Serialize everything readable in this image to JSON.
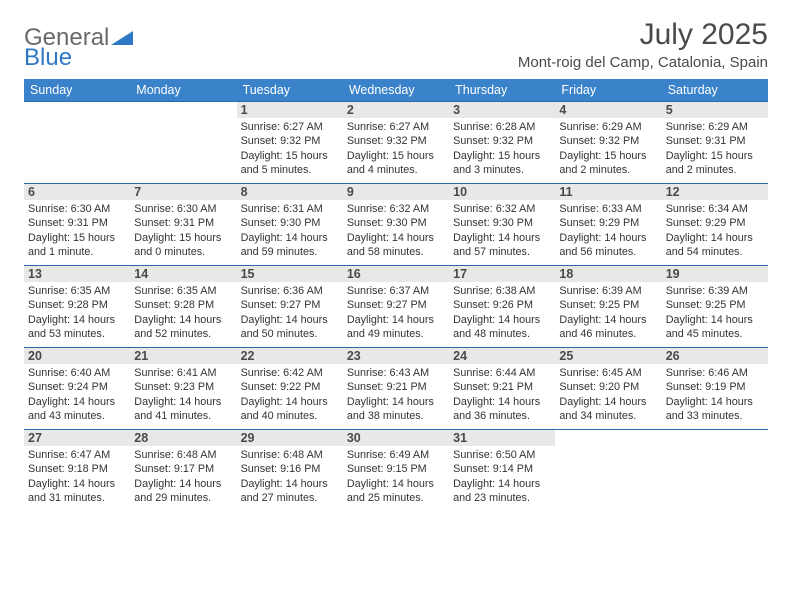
{
  "brand": {
    "part1": "General",
    "part2": "Blue",
    "color1": "#6a6a6a",
    "color2": "#2f78c4"
  },
  "title": {
    "month": "July 2025",
    "location": "Mont-roig del Camp, Catalonia, Spain"
  },
  "style": {
    "header_bg": "#3a82c9",
    "header_text": "#ffffff",
    "row_border": "#2a6aa8",
    "daynum_bg": "#e8e8e8",
    "page_bg": "#ffffff",
    "body_text": "#333333",
    "month_fontsize": 30,
    "location_fontsize": 15,
    "dayhdr_fontsize": 12.5,
    "cell_fontsize": 10.8
  },
  "day_headers": [
    "Sunday",
    "Monday",
    "Tuesday",
    "Wednesday",
    "Thursday",
    "Friday",
    "Saturday"
  ],
  "weeks": [
    [
      null,
      null,
      {
        "n": "1",
        "rise": "6:27 AM",
        "set": "9:32 PM",
        "day": "15 hours and 5 minutes."
      },
      {
        "n": "2",
        "rise": "6:27 AM",
        "set": "9:32 PM",
        "day": "15 hours and 4 minutes."
      },
      {
        "n": "3",
        "rise": "6:28 AM",
        "set": "9:32 PM",
        "day": "15 hours and 3 minutes."
      },
      {
        "n": "4",
        "rise": "6:29 AM",
        "set": "9:32 PM",
        "day": "15 hours and 2 minutes."
      },
      {
        "n": "5",
        "rise": "6:29 AM",
        "set": "9:31 PM",
        "day": "15 hours and 2 minutes."
      }
    ],
    [
      {
        "n": "6",
        "rise": "6:30 AM",
        "set": "9:31 PM",
        "day": "15 hours and 1 minute."
      },
      {
        "n": "7",
        "rise": "6:30 AM",
        "set": "9:31 PM",
        "day": "15 hours and 0 minutes."
      },
      {
        "n": "8",
        "rise": "6:31 AM",
        "set": "9:30 PM",
        "day": "14 hours and 59 minutes."
      },
      {
        "n": "9",
        "rise": "6:32 AM",
        "set": "9:30 PM",
        "day": "14 hours and 58 minutes."
      },
      {
        "n": "10",
        "rise": "6:32 AM",
        "set": "9:30 PM",
        "day": "14 hours and 57 minutes."
      },
      {
        "n": "11",
        "rise": "6:33 AM",
        "set": "9:29 PM",
        "day": "14 hours and 56 minutes."
      },
      {
        "n": "12",
        "rise": "6:34 AM",
        "set": "9:29 PM",
        "day": "14 hours and 54 minutes."
      }
    ],
    [
      {
        "n": "13",
        "rise": "6:35 AM",
        "set": "9:28 PM",
        "day": "14 hours and 53 minutes."
      },
      {
        "n": "14",
        "rise": "6:35 AM",
        "set": "9:28 PM",
        "day": "14 hours and 52 minutes."
      },
      {
        "n": "15",
        "rise": "6:36 AM",
        "set": "9:27 PM",
        "day": "14 hours and 50 minutes."
      },
      {
        "n": "16",
        "rise": "6:37 AM",
        "set": "9:27 PM",
        "day": "14 hours and 49 minutes."
      },
      {
        "n": "17",
        "rise": "6:38 AM",
        "set": "9:26 PM",
        "day": "14 hours and 48 minutes."
      },
      {
        "n": "18",
        "rise": "6:39 AM",
        "set": "9:25 PM",
        "day": "14 hours and 46 minutes."
      },
      {
        "n": "19",
        "rise": "6:39 AM",
        "set": "9:25 PM",
        "day": "14 hours and 45 minutes."
      }
    ],
    [
      {
        "n": "20",
        "rise": "6:40 AM",
        "set": "9:24 PM",
        "day": "14 hours and 43 minutes."
      },
      {
        "n": "21",
        "rise": "6:41 AM",
        "set": "9:23 PM",
        "day": "14 hours and 41 minutes."
      },
      {
        "n": "22",
        "rise": "6:42 AM",
        "set": "9:22 PM",
        "day": "14 hours and 40 minutes."
      },
      {
        "n": "23",
        "rise": "6:43 AM",
        "set": "9:21 PM",
        "day": "14 hours and 38 minutes."
      },
      {
        "n": "24",
        "rise": "6:44 AM",
        "set": "9:21 PM",
        "day": "14 hours and 36 minutes."
      },
      {
        "n": "25",
        "rise": "6:45 AM",
        "set": "9:20 PM",
        "day": "14 hours and 34 minutes."
      },
      {
        "n": "26",
        "rise": "6:46 AM",
        "set": "9:19 PM",
        "day": "14 hours and 33 minutes."
      }
    ],
    [
      {
        "n": "27",
        "rise": "6:47 AM",
        "set": "9:18 PM",
        "day": "14 hours and 31 minutes."
      },
      {
        "n": "28",
        "rise": "6:48 AM",
        "set": "9:17 PM",
        "day": "14 hours and 29 minutes."
      },
      {
        "n": "29",
        "rise": "6:48 AM",
        "set": "9:16 PM",
        "day": "14 hours and 27 minutes."
      },
      {
        "n": "30",
        "rise": "6:49 AM",
        "set": "9:15 PM",
        "day": "14 hours and 25 minutes."
      },
      {
        "n": "31",
        "rise": "6:50 AM",
        "set": "9:14 PM",
        "day": "14 hours and 23 minutes."
      },
      null,
      null
    ]
  ],
  "labels": {
    "sunrise": "Sunrise:",
    "sunset": "Sunset:",
    "daylight": "Daylight:"
  }
}
